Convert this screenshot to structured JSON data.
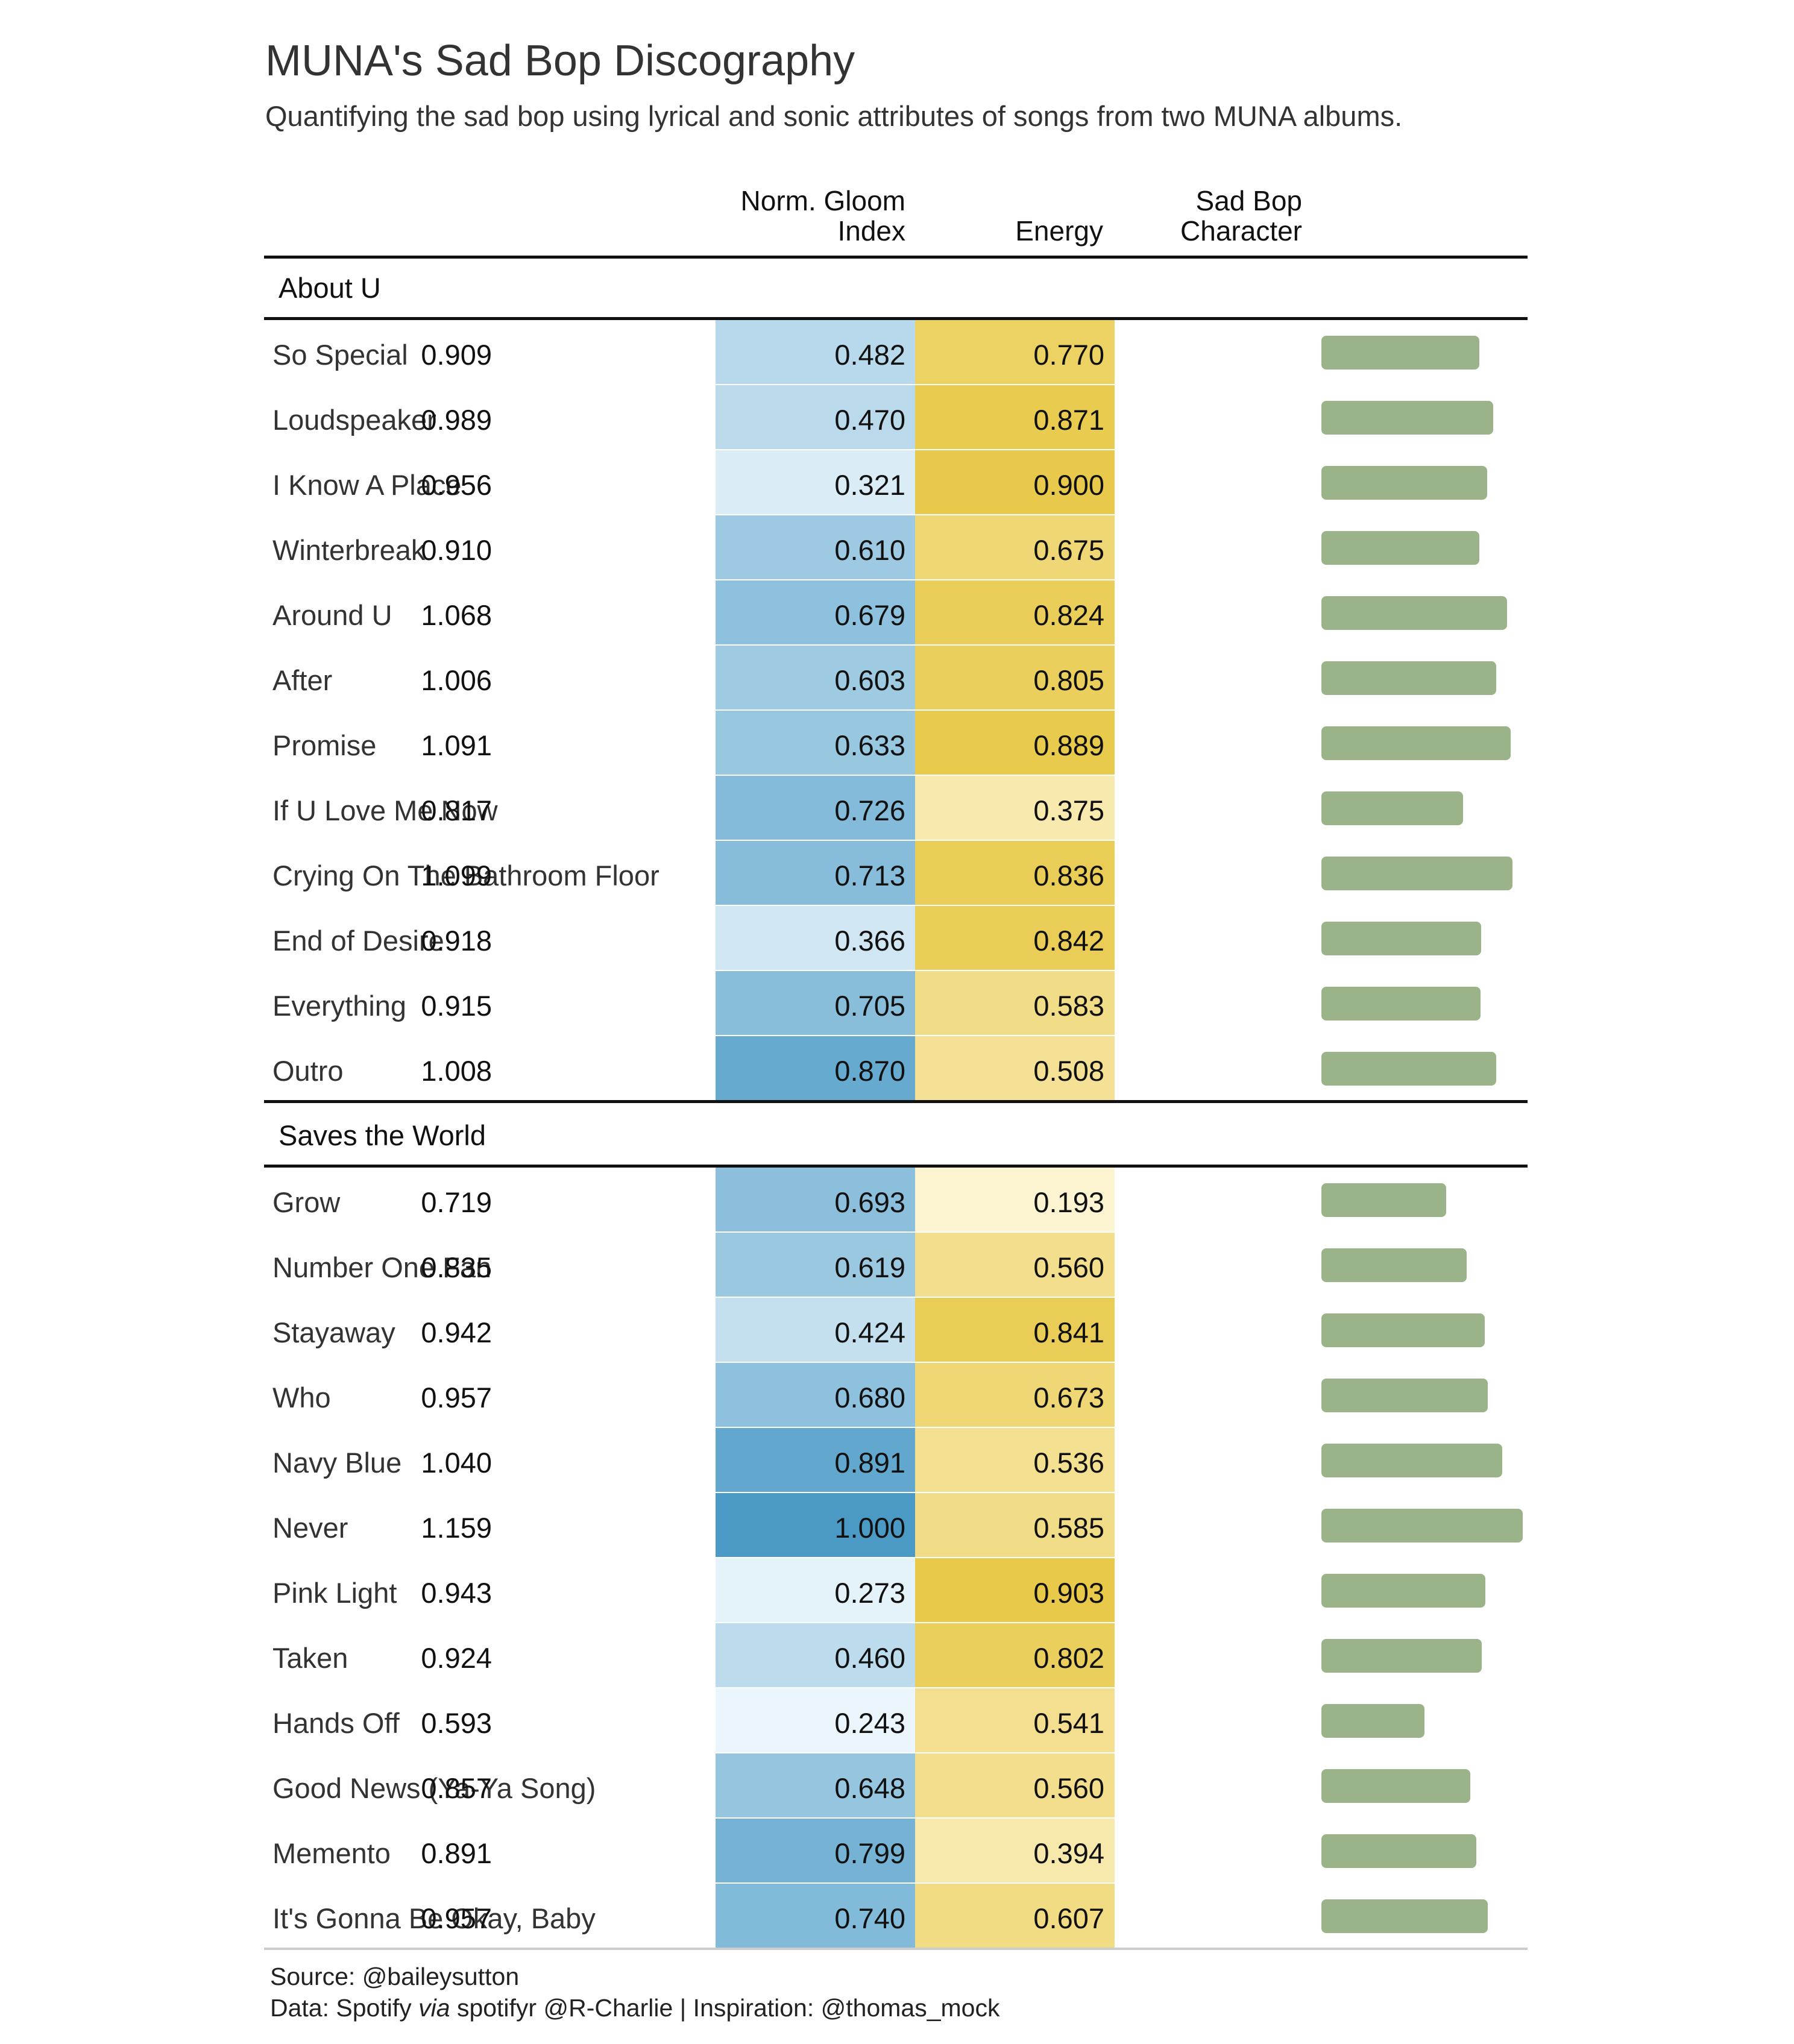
{
  "title": "MUNA's Sad Bop Discography",
  "subtitle": "Quantifying the sad bop using lyrical and sonic attributes of songs from two MUNA albums.",
  "columns": {
    "gloom_line1": "Norm. Gloom",
    "gloom_line2": "Index",
    "energy": "Energy",
    "sadbop_line1": "Sad Bop",
    "sadbop_line2": "Character"
  },
  "footer": {
    "source": "Source: @baileysutton",
    "data_prefix": "Data: Spotify ",
    "data_via": "via",
    "data_suffix": " spotifyr @R-Charlie | Inspiration: @thomas_mock"
  },
  "colors": {
    "gloom_scale": [
      "#eaf6fc",
      "#4b9ac6"
    ],
    "energy_scale": [
      "#fdf5d2",
      "#e8c94a"
    ],
    "bar": "#9bb389"
  },
  "chart_data": {
    "type": "table",
    "value_columns": [
      "gloom",
      "energy",
      "sad_bop"
    ],
    "bar_column": "sad_bop",
    "groups": [
      {
        "name": "About U",
        "rows": [
          {
            "song": "So Special",
            "gloom": "0.482",
            "energy": "0.770",
            "sad_bop": "0.909"
          },
          {
            "song": "Loudspeaker",
            "gloom": "0.470",
            "energy": "0.871",
            "sad_bop": "0.989"
          },
          {
            "song": "I Know A Place",
            "gloom": "0.321",
            "energy": "0.900",
            "sad_bop": "0.956"
          },
          {
            "song": "Winterbreak",
            "gloom": "0.610",
            "energy": "0.675",
            "sad_bop": "0.910"
          },
          {
            "song": "Around U",
            "gloom": "0.679",
            "energy": "0.824",
            "sad_bop": "1.068"
          },
          {
            "song": "After",
            "gloom": "0.603",
            "energy": "0.805",
            "sad_bop": "1.006"
          },
          {
            "song": "Promise",
            "gloom": "0.633",
            "energy": "0.889",
            "sad_bop": "1.091"
          },
          {
            "song": "If U Love Me Now",
            "gloom": "0.726",
            "energy": "0.375",
            "sad_bop": "0.817"
          },
          {
            "song": "Crying On The Bathroom Floor",
            "gloom": "0.713",
            "energy": "0.836",
            "sad_bop": "1.099"
          },
          {
            "song": "End of Desire",
            "gloom": "0.366",
            "energy": "0.842",
            "sad_bop": "0.918"
          },
          {
            "song": "Everything",
            "gloom": "0.705",
            "energy": "0.583",
            "sad_bop": "0.915"
          },
          {
            "song": "Outro",
            "gloom": "0.870",
            "energy": "0.508",
            "sad_bop": "1.008"
          }
        ]
      },
      {
        "name": "Saves the World",
        "rows": [
          {
            "song": "Grow",
            "gloom": "0.693",
            "energy": "0.193",
            "sad_bop": "0.719"
          },
          {
            "song": "Number One Fan",
            "gloom": "0.619",
            "energy": "0.560",
            "sad_bop": "0.835"
          },
          {
            "song": "Stayaway",
            "gloom": "0.424",
            "energy": "0.841",
            "sad_bop": "0.942"
          },
          {
            "song": "Who",
            "gloom": "0.680",
            "energy": "0.673",
            "sad_bop": "0.957"
          },
          {
            "song": "Navy Blue",
            "gloom": "0.891",
            "energy": "0.536",
            "sad_bop": "1.040"
          },
          {
            "song": "Never",
            "gloom": "1.000",
            "energy": "0.585",
            "sad_bop": "1.159"
          },
          {
            "song": "Pink Light",
            "gloom": "0.273",
            "energy": "0.903",
            "sad_bop": "0.943"
          },
          {
            "song": "Taken",
            "gloom": "0.460",
            "energy": "0.802",
            "sad_bop": "0.924"
          },
          {
            "song": "Hands Off",
            "gloom": "0.243",
            "energy": "0.541",
            "sad_bop": "0.593"
          },
          {
            "song": "Good News (Ya-Ya Song)",
            "gloom": "0.648",
            "energy": "0.560",
            "sad_bop": "0.857"
          },
          {
            "song": "Memento",
            "gloom": "0.799",
            "energy": "0.394",
            "sad_bop": "0.891"
          },
          {
            "song": "It's Gonna Be Okay, Baby",
            "gloom": "0.740",
            "energy": "0.607",
            "sad_bop": "0.957"
          }
        ]
      }
    ]
  }
}
